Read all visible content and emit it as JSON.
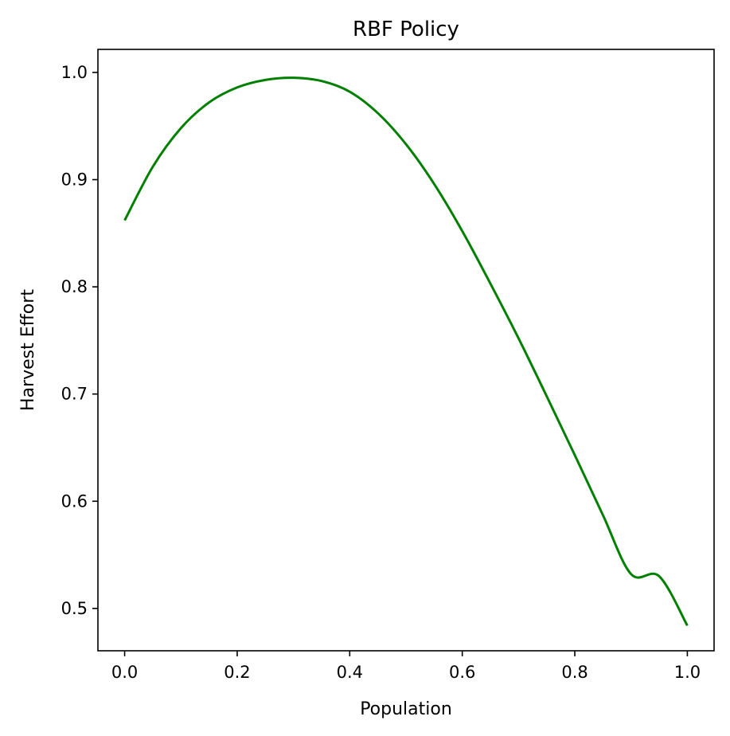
{
  "chart_data": {
    "type": "line",
    "title": "RBF Policy",
    "xlabel": "Population",
    "ylabel": "Harvest Effort",
    "xlim": [
      -0.0475,
      1.0475
    ],
    "ylim": [
      0.4605,
      1.0215
    ],
    "xticks": [
      0.0,
      0.2,
      0.4,
      0.6,
      0.8,
      1.0
    ],
    "xtick_labels": [
      "0.0",
      "0.2",
      "0.4",
      "0.6",
      "0.8",
      "1.0"
    ],
    "yticks": [
      0.5,
      0.6,
      0.7,
      0.8,
      0.9,
      1.0
    ],
    "ytick_labels": [
      "0.5",
      "0.6",
      "0.7",
      "0.8",
      "0.9",
      "1.0"
    ],
    "grid": false,
    "series": [
      {
        "color": "#008000",
        "x": [
          0.0,
          0.05,
          0.1,
          0.15,
          0.2,
          0.25,
          0.3,
          0.35,
          0.4,
          0.45,
          0.5,
          0.55,
          0.6,
          0.65,
          0.7,
          0.75,
          0.8,
          0.85,
          0.9,
          0.95,
          1.0
        ],
        "y": [
          0.862,
          0.912,
          0.948,
          0.972,
          0.986,
          0.993,
          0.995,
          0.992,
          0.982,
          0.962,
          0.933,
          0.896,
          0.852,
          0.803,
          0.752,
          0.698,
          0.643,
          0.587,
          0.532,
          0.478,
          0.484
        ]
      }
    ]
  }
}
